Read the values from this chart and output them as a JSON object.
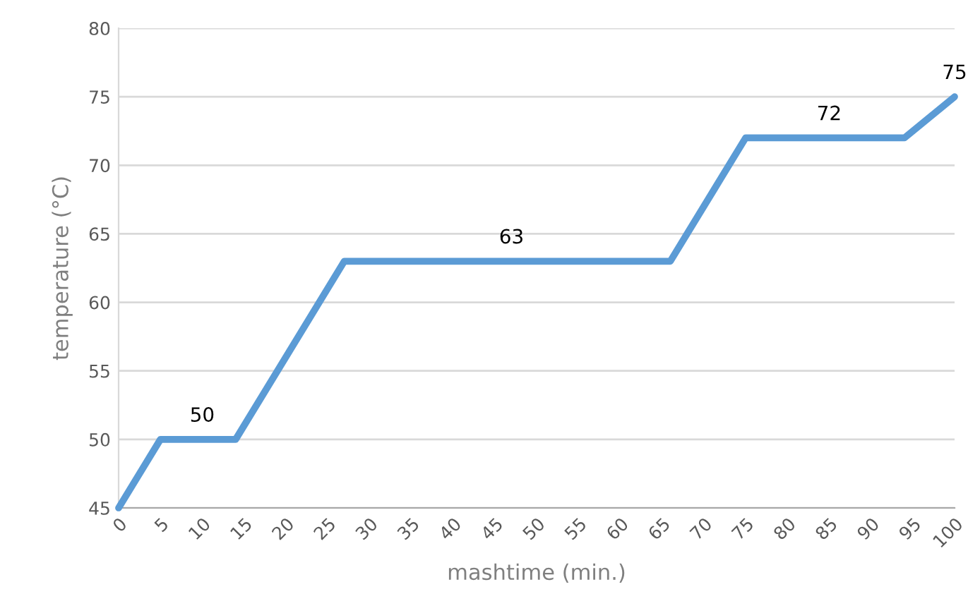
{
  "chart_data": {
    "type": "line",
    "xlabel": "mashtime (min.)",
    "ylabel": "temperature (°C)",
    "series": [
      {
        "color": "#5b9bd5",
        "x": [
          0,
          5,
          14,
          27,
          66,
          75,
          94,
          100
        ],
        "values": [
          45,
          50,
          50,
          63,
          63,
          72,
          72,
          75
        ]
      }
    ],
    "annotations": [
      {
        "text": "50",
        "x": 10,
        "y": 50
      },
      {
        "text": "63",
        "x": 47,
        "y": 63
      },
      {
        "text": "72",
        "x": 85,
        "y": 72
      },
      {
        "text": "75",
        "x": 100,
        "y": 75
      }
    ],
    "xlim": [
      0,
      100
    ],
    "xticks": [
      0,
      5,
      10,
      15,
      20,
      25,
      30,
      35,
      40,
      45,
      50,
      55,
      60,
      65,
      70,
      75,
      80,
      85,
      90,
      95,
      100
    ],
    "ylim": [
      45,
      80
    ],
    "yticks": [
      45,
      50,
      55,
      60,
      65,
      70,
      75,
      80
    ],
    "grid": "y",
    "marker": "none",
    "line_style": "solid"
  }
}
